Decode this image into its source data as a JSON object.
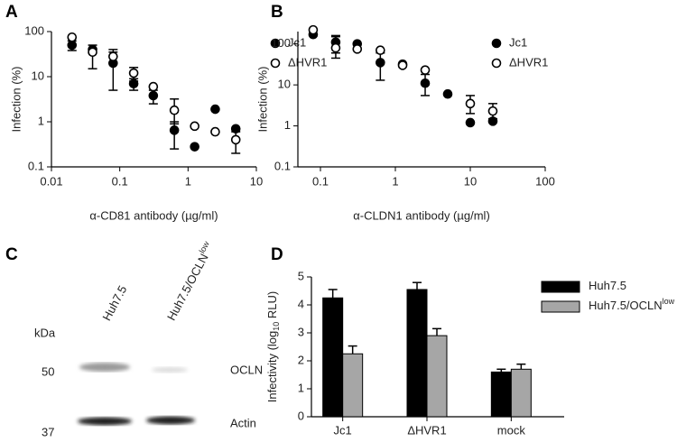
{
  "chart_data": [
    {
      "type": "scatter",
      "label": "A",
      "xscale": "log",
      "yscale": "log",
      "xlabel": "α-CD81 antibody (µg/ml)",
      "ylabel": "Infection (%)",
      "xlim": [
        0.01,
        10
      ],
      "xticks": [
        0.01,
        0.1,
        1,
        10
      ],
      "ylim": [
        0.1,
        100
      ],
      "yticks": [
        0.1,
        1,
        10,
        100
      ],
      "x": [
        0.02,
        0.04,
        0.08,
        0.16,
        0.31,
        0.63,
        1.25,
        2.5,
        5
      ],
      "series": [
        {
          "name": "Jc1",
          "color": "#000000",
          "fill": "#000000",
          "values": [
            50,
            40,
            20,
            7,
            3.8,
            0.65,
            0.28,
            1.9,
            0.7
          ],
          "yerr": [
            [
              12,
              12
            ],
            [
              25,
              10
            ],
            [
              15,
              15
            ],
            [
              2,
              2
            ],
            [
              1.3,
              1.2
            ],
            [
              0.4,
              0.35
            ],
            null,
            null,
            null
          ]
        },
        {
          "name": "ΔHVR1",
          "color": "#000000",
          "fill": "#ffffff",
          "values": [
            75,
            35,
            28,
            12,
            6,
            1.8,
            0.8,
            0.6,
            0.4
          ],
          "yerr": [
            null,
            null,
            [
              8,
              12
            ],
            [
              4,
              4
            ],
            null,
            [
              0.9,
              1.4
            ],
            null,
            null,
            [
              0.2,
              0.2
            ]
          ]
        }
      ]
    },
    {
      "type": "scatter",
      "label": "B",
      "xscale": "log",
      "yscale": "log",
      "xlabel": "α-CLDN1 antibody (µg/ml)",
      "ylabel": "Infection (%)",
      "xlim": [
        0.05,
        100
      ],
      "xticks": [
        0.1,
        1,
        10,
        100
      ],
      "ylim": [
        0.1,
        200
      ],
      "yticks": [
        0.1,
        1,
        10,
        100
      ],
      "x": [
        0.08,
        0.16,
        0.31,
        0.63,
        1.25,
        2.5,
        5,
        10,
        20
      ],
      "series": [
        {
          "name": "Jc1",
          "color": "#000000",
          "fill": "#000000",
          "values": [
            170,
            110,
            100,
            35,
            32,
            11,
            6,
            1.2,
            1.3
          ],
          "yerr": [
            null,
            [
              50,
              50
            ],
            null,
            [
              22,
              25
            ],
            null,
            [
              5.5,
              7
            ],
            null,
            null,
            null
          ]
        },
        {
          "name": "ΔHVR1",
          "color": "#000000",
          "fill": "#ffffff",
          "values": [
            220,
            80,
            75,
            70,
            30,
            23,
            null,
            3.5,
            2.3
          ],
          "yerr": [
            null,
            [
              35,
              70
            ],
            null,
            null,
            null,
            null,
            null,
            [
              1.5,
              2
            ],
            [
              0.8,
              1.2
            ]
          ]
        }
      ]
    },
    {
      "type": "bar",
      "label": "D",
      "ylabel": [
        "Infectivity (log",
        "10",
        " RLU)"
      ],
      "categories": [
        "Jc1",
        "ΔHVR1",
        "mock"
      ],
      "ylim": [
        0,
        5
      ],
      "yticks": [
        0,
        1,
        2,
        3,
        4,
        5
      ],
      "series": [
        {
          "name": "Huh7.5",
          "color": "#000000",
          "values": [
            4.25,
            4.55,
            1.6
          ],
          "yerr": [
            0.3,
            0.25,
            0.1
          ]
        },
        {
          "name": "Huh7.5/OCLN",
          "name_sup": "low",
          "color": "#a6a6a6",
          "values": [
            2.25,
            2.9,
            1.7
          ],
          "yerr": [
            0.28,
            0.25,
            0.18
          ]
        }
      ]
    }
  ],
  "blot": {
    "label": "C",
    "lane1": "Huh7.5",
    "lane2": [
      "Huh7.5/OCLN",
      "low"
    ],
    "unit": "kDa",
    "marker_top": "50",
    "marker_bottom": "37",
    "band_top": "OCLN",
    "band_bottom": "Actin"
  }
}
